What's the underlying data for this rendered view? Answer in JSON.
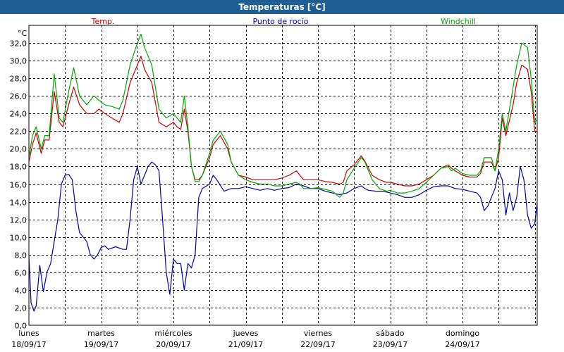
{
  "window": {
    "title": "Temperaturas [°C]"
  },
  "chart_data": {
    "type": "line",
    "title": "Temperaturas [°C]",
    "ylabel": "°C",
    "ylim": [
      0,
      34
    ],
    "yticks": [
      0,
      2,
      4,
      6,
      8,
      10,
      12,
      14,
      16,
      18,
      20,
      22,
      24,
      26,
      28,
      30,
      32
    ],
    "ytick_labels": [
      "0,0",
      "2,0",
      "4,0",
      "6,0",
      "8,0",
      "10,0",
      "12,0",
      "14,0",
      "16,0",
      "18,0",
      "20,0",
      "22,0",
      "24,0",
      "26,0",
      "28,0",
      "30,0",
      "32,0"
    ],
    "xlim": [
      0,
      7
    ],
    "xticks": [
      0,
      1,
      2,
      3,
      4,
      5,
      6
    ],
    "xtick_labels": [
      {
        "day": "lunes",
        "date": "18/09/17"
      },
      {
        "day": "martes",
        "date": "19/09/17"
      },
      {
        "day": "miércoles",
        "date": "20/09/17"
      },
      {
        "day": "jueves",
        "date": "21/09/17"
      },
      {
        "day": "viernes",
        "date": "22/09/17"
      },
      {
        "day": "sábado",
        "date": "23/09/17"
      },
      {
        "day": "domingo",
        "date": "24/09/17"
      }
    ],
    "grid": true,
    "legend_position": "top",
    "series": [
      {
        "name": "Temp.",
        "color": "#cc0000",
        "points": [
          [
            0.0,
            18.5
          ],
          [
            0.05,
            20.5
          ],
          [
            0.1,
            21.8
          ],
          [
            0.17,
            19.5
          ],
          [
            0.22,
            21.0
          ],
          [
            0.28,
            21.0
          ],
          [
            0.35,
            26.5
          ],
          [
            0.42,
            23.0
          ],
          [
            0.47,
            22.5
          ],
          [
            0.55,
            25.0
          ],
          [
            0.62,
            27.0
          ],
          [
            0.7,
            25.0
          ],
          [
            0.8,
            24.0
          ],
          [
            0.9,
            24.0
          ],
          [
            0.97,
            24.5
          ],
          [
            1.05,
            24.0
          ],
          [
            1.15,
            23.5
          ],
          [
            1.25,
            23.0
          ],
          [
            1.3,
            24.0
          ],
          [
            1.4,
            27.5
          ],
          [
            1.5,
            29.5
          ],
          [
            1.55,
            30.5
          ],
          [
            1.6,
            29.0
          ],
          [
            1.7,
            27.5
          ],
          [
            1.8,
            23.0
          ],
          [
            1.9,
            22.5
          ],
          [
            2.0,
            23.0
          ],
          [
            2.05,
            22.5
          ],
          [
            2.1,
            22.2
          ],
          [
            2.15,
            24.5
          ],
          [
            2.2,
            22.0
          ],
          [
            2.25,
            18.0
          ],
          [
            2.3,
            16.5
          ],
          [
            2.35,
            16.5
          ],
          [
            2.4,
            17.0
          ],
          [
            2.5,
            19.0
          ],
          [
            2.55,
            20.5
          ],
          [
            2.65,
            21.5
          ],
          [
            2.75,
            20.0
          ],
          [
            2.8,
            18.5
          ],
          [
            2.9,
            17.0
          ],
          [
            3.0,
            16.8
          ],
          [
            3.1,
            16.5
          ],
          [
            3.2,
            16.5
          ],
          [
            3.3,
            16.5
          ],
          [
            3.4,
            16.5
          ],
          [
            3.5,
            16.7
          ],
          [
            3.6,
            17.0
          ],
          [
            3.7,
            17.5
          ],
          [
            3.75,
            17.0
          ],
          [
            3.8,
            16.5
          ],
          [
            3.9,
            16.5
          ],
          [
            4.0,
            16.5
          ],
          [
            4.1,
            16.3
          ],
          [
            4.2,
            16.2
          ],
          [
            4.3,
            16.0
          ],
          [
            4.35,
            16.2
          ],
          [
            4.4,
            17.5
          ],
          [
            4.5,
            18.2
          ],
          [
            4.6,
            19.2
          ],
          [
            4.65,
            18.6
          ],
          [
            4.75,
            17.0
          ],
          [
            4.85,
            16.5
          ],
          [
            4.95,
            16.2
          ],
          [
            5.0,
            16.2
          ],
          [
            5.1,
            16.0
          ],
          [
            5.2,
            15.8
          ],
          [
            5.3,
            15.8
          ],
          [
            5.4,
            16.0
          ],
          [
            5.5,
            16.5
          ],
          [
            5.6,
            17.0
          ],
          [
            5.7,
            17.8
          ],
          [
            5.8,
            18.2
          ],
          [
            5.85,
            17.8
          ],
          [
            5.9,
            17.5
          ],
          [
            6.0,
            17.0
          ],
          [
            6.1,
            16.8
          ],
          [
            6.2,
            16.8
          ],
          [
            6.25,
            17.2
          ],
          [
            6.3,
            18.5
          ],
          [
            6.4,
            18.5
          ],
          [
            6.45,
            17.5
          ],
          [
            6.5,
            19.0
          ],
          [
            6.55,
            23.5
          ],
          [
            6.6,
            21.5
          ],
          [
            6.7,
            25.0
          ],
          [
            6.75,
            27.5
          ],
          [
            6.82,
            29.5
          ],
          [
            6.9,
            29.0
          ],
          [
            6.95,
            26.5
          ],
          [
            7.0,
            22.0
          ],
          [
            7.05,
            22.0
          ],
          [
            7.1,
            26.0
          ],
          [
            7.15,
            26.5
          ],
          [
            7.2,
            27.0
          ],
          [
            7.25,
            22.0
          ],
          [
            7.28,
            20.5
          ]
        ]
      },
      {
        "name": "Punto de rocío",
        "color": "#0000aa",
        "points": [
          [
            0.0,
            7.8
          ],
          [
            0.03,
            2.5
          ],
          [
            0.07,
            1.6
          ],
          [
            0.1,
            2.2
          ],
          [
            0.15,
            6.8
          ],
          [
            0.2,
            3.8
          ],
          [
            0.25,
            6.0
          ],
          [
            0.3,
            7.0
          ],
          [
            0.35,
            9.5
          ],
          [
            0.4,
            12.0
          ],
          [
            0.45,
            16.0
          ],
          [
            0.5,
            17.0
          ],
          [
            0.55,
            17.1
          ],
          [
            0.6,
            16.5
          ],
          [
            0.65,
            13.0
          ],
          [
            0.7,
            10.5
          ],
          [
            0.75,
            10.0
          ],
          [
            0.8,
            9.5
          ],
          [
            0.85,
            8.0
          ],
          [
            0.9,
            7.5
          ],
          [
            0.95,
            8.0
          ],
          [
            1.0,
            8.8
          ],
          [
            1.05,
            9.0
          ],
          [
            1.1,
            8.6
          ],
          [
            1.2,
            8.9
          ],
          [
            1.3,
            8.6
          ],
          [
            1.35,
            8.6
          ],
          [
            1.4,
            12.0
          ],
          [
            1.45,
            16.5
          ],
          [
            1.5,
            18.0
          ],
          [
            1.55,
            16.0
          ],
          [
            1.6,
            17.0
          ],
          [
            1.65,
            18.0
          ],
          [
            1.7,
            18.5
          ],
          [
            1.75,
            18.2
          ],
          [
            1.8,
            17.5
          ],
          [
            1.85,
            12.0
          ],
          [
            1.9,
            6.0
          ],
          [
            1.95,
            3.5
          ],
          [
            2.0,
            7.5
          ],
          [
            2.05,
            7.0
          ],
          [
            2.1,
            7.0
          ],
          [
            2.15,
            4.0
          ],
          [
            2.2,
            7.0
          ],
          [
            2.25,
            6.5
          ],
          [
            2.3,
            8.0
          ],
          [
            2.35,
            14.5
          ],
          [
            2.4,
            15.5
          ],
          [
            2.5,
            16.0
          ],
          [
            2.55,
            17.0
          ],
          [
            2.6,
            16.5
          ],
          [
            2.7,
            15.2
          ],
          [
            2.8,
            15.5
          ],
          [
            2.9,
            15.5
          ],
          [
            3.0,
            15.7
          ],
          [
            3.1,
            15.5
          ],
          [
            3.2,
            15.3
          ],
          [
            3.3,
            15.5
          ],
          [
            3.4,
            15.3
          ],
          [
            3.5,
            15.5
          ],
          [
            3.6,
            15.6
          ],
          [
            3.7,
            16.0
          ],
          [
            3.8,
            15.8
          ],
          [
            3.9,
            15.5
          ],
          [
            4.0,
            15.5
          ],
          [
            4.1,
            15.2
          ],
          [
            4.2,
            15.0
          ],
          [
            4.3,
            14.8
          ],
          [
            4.4,
            15.0
          ],
          [
            4.5,
            15.5
          ],
          [
            4.6,
            15.8
          ],
          [
            4.65,
            15.5
          ],
          [
            4.7,
            15.3
          ],
          [
            4.8,
            15.2
          ],
          [
            4.9,
            15.2
          ],
          [
            5.0,
            15.0
          ],
          [
            5.1,
            14.8
          ],
          [
            5.2,
            14.5
          ],
          [
            5.3,
            14.5
          ],
          [
            5.4,
            14.8
          ],
          [
            5.5,
            15.3
          ],
          [
            5.6,
            15.7
          ],
          [
            5.7,
            15.8
          ],
          [
            5.8,
            15.8
          ],
          [
            5.9,
            15.5
          ],
          [
            6.0,
            15.4
          ],
          [
            6.1,
            15.2
          ],
          [
            6.2,
            15.0
          ],
          [
            6.25,
            14.5
          ],
          [
            6.3,
            13.0
          ],
          [
            6.35,
            13.5
          ],
          [
            6.4,
            14.5
          ],
          [
            6.45,
            15.5
          ],
          [
            6.5,
            17.5
          ],
          [
            6.55,
            16.5
          ],
          [
            6.6,
            12.5
          ],
          [
            6.65,
            15.0
          ],
          [
            6.7,
            13.0
          ],
          [
            6.75,
            14.5
          ],
          [
            6.8,
            18.0
          ],
          [
            6.85,
            16.5
          ],
          [
            6.9,
            12.5
          ],
          [
            6.95,
            11.0
          ],
          [
            7.0,
            11.5
          ],
          [
            7.05,
            15.0
          ],
          [
            7.1,
            16.0
          ]
        ]
      },
      {
        "name": "Windchill",
        "color": "#00aa00",
        "points": [
          [
            0.0,
            19.0
          ],
          [
            0.05,
            21.5
          ],
          [
            0.1,
            22.5
          ],
          [
            0.17,
            20.0
          ],
          [
            0.22,
            21.5
          ],
          [
            0.28,
            21.5
          ],
          [
            0.35,
            28.5
          ],
          [
            0.42,
            23.5
          ],
          [
            0.47,
            23.0
          ],
          [
            0.55,
            26.5
          ],
          [
            0.62,
            29.2
          ],
          [
            0.7,
            26.0
          ],
          [
            0.8,
            25.0
          ],
          [
            0.9,
            26.0
          ],
          [
            0.97,
            25.5
          ],
          [
            1.05,
            25.0
          ],
          [
            1.15,
            24.8
          ],
          [
            1.25,
            24.5
          ],
          [
            1.3,
            25.5
          ],
          [
            1.4,
            29.5
          ],
          [
            1.5,
            32.0
          ],
          [
            1.55,
            33.0
          ],
          [
            1.6,
            31.5
          ],
          [
            1.7,
            29.5
          ],
          [
            1.8,
            24.5
          ],
          [
            1.9,
            23.5
          ],
          [
            2.0,
            24.0
          ],
          [
            2.05,
            23.5
          ],
          [
            2.1,
            23.0
          ],
          [
            2.15,
            26.0
          ],
          [
            2.2,
            22.5
          ],
          [
            2.25,
            18.0
          ],
          [
            2.3,
            16.3
          ],
          [
            2.35,
            16.3
          ],
          [
            2.4,
            17.0
          ],
          [
            2.5,
            19.5
          ],
          [
            2.55,
            21.0
          ],
          [
            2.65,
            22.0
          ],
          [
            2.75,
            20.5
          ],
          [
            2.8,
            18.5
          ],
          [
            2.9,
            17.0
          ],
          [
            3.0,
            16.5
          ],
          [
            3.1,
            16.2
          ],
          [
            3.2,
            16.0
          ],
          [
            3.3,
            16.0
          ],
          [
            3.4,
            15.8
          ],
          [
            3.5,
            15.8
          ],
          [
            3.6,
            16.0
          ],
          [
            3.7,
            16.2
          ],
          [
            3.75,
            16.0
          ],
          [
            3.8,
            15.5
          ],
          [
            3.9,
            15.5
          ],
          [
            4.0,
            15.6
          ],
          [
            4.1,
            15.4
          ],
          [
            4.2,
            15.2
          ],
          [
            4.3,
            14.5
          ],
          [
            4.35,
            15.0
          ],
          [
            4.4,
            16.5
          ],
          [
            4.5,
            17.8
          ],
          [
            4.6,
            19.0
          ],
          [
            4.65,
            18.5
          ],
          [
            4.75,
            16.5
          ],
          [
            4.85,
            15.5
          ],
          [
            4.95,
            15.2
          ],
          [
            5.0,
            15.3
          ],
          [
            5.1,
            15.0
          ],
          [
            5.2,
            15.0
          ],
          [
            5.3,
            15.2
          ],
          [
            5.4,
            15.5
          ],
          [
            5.5,
            16.2
          ],
          [
            5.6,
            17.0
          ],
          [
            5.7,
            17.8
          ],
          [
            5.8,
            18.0
          ],
          [
            5.85,
            17.5
          ],
          [
            5.9,
            17.8
          ],
          [
            6.0,
            17.2
          ],
          [
            6.1,
            17.0
          ],
          [
            6.2,
            17.0
          ],
          [
            6.25,
            17.5
          ],
          [
            6.3,
            19.0
          ],
          [
            6.4,
            19.0
          ],
          [
            6.45,
            17.5
          ],
          [
            6.5,
            20.0
          ],
          [
            6.55,
            24.0
          ],
          [
            6.6,
            22.0
          ],
          [
            6.7,
            27.0
          ],
          [
            6.75,
            29.5
          ],
          [
            6.82,
            32.0
          ],
          [
            6.9,
            31.5
          ],
          [
            6.95,
            28.0
          ],
          [
            7.0,
            23.0
          ],
          [
            7.05,
            23.5
          ],
          [
            7.1,
            28.0
          ],
          [
            7.15,
            28.8
          ],
          [
            7.2,
            28.5
          ],
          [
            7.25,
            23.0
          ],
          [
            7.28,
            21.0
          ]
        ]
      }
    ]
  }
}
